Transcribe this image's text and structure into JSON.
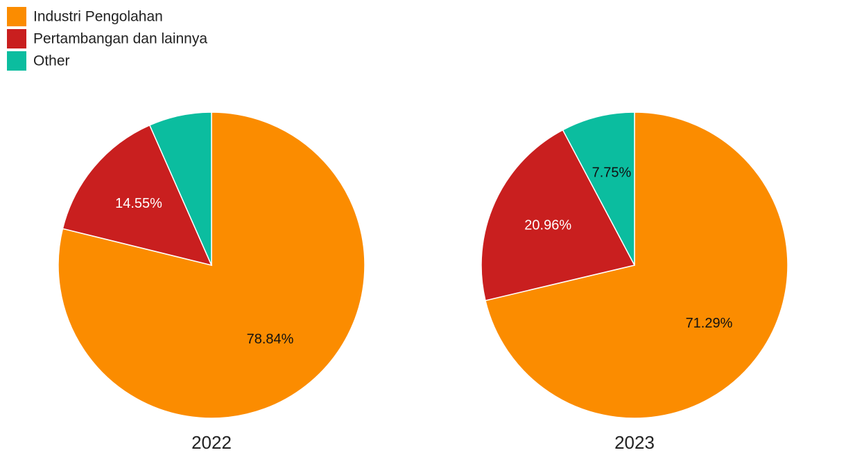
{
  "chart_data": [
    {
      "type": "pie",
      "title": "2022",
      "categories": [
        "Industri Pengolahan",
        "Pertambangan dan lainnya",
        "Other"
      ],
      "values": [
        78.84,
        14.55,
        6.61
      ],
      "value_labels": [
        "78.84%",
        "14.55%",
        null
      ],
      "colors": [
        "#fb8c00",
        "#c91f1f",
        "#0bbd9f"
      ]
    },
    {
      "type": "pie",
      "title": "2023",
      "categories": [
        "Industri Pengolahan",
        "Pertambangan dan lainnya",
        "Other"
      ],
      "values": [
        71.29,
        20.96,
        7.75
      ],
      "value_labels": [
        "71.29%",
        "20.96%",
        "7.75%"
      ],
      "colors": [
        "#fb8c00",
        "#c91f1f",
        "#0bbd9f"
      ]
    }
  ]
}
